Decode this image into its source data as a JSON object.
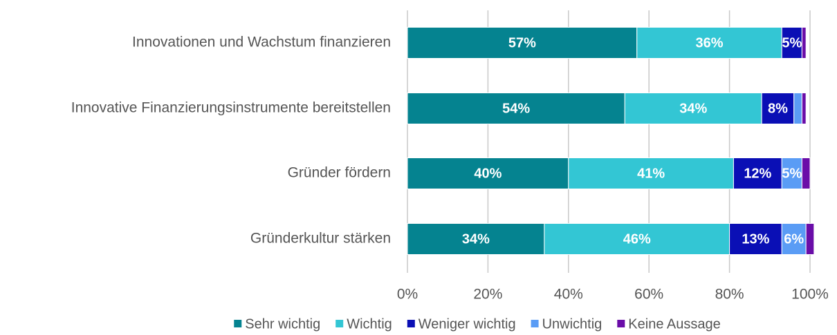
{
  "chart_data": {
    "type": "stacked-barh",
    "categories": [
      "Innovationen und Wachstum finanzieren",
      "Innovative Finanzierungsinstrumente bereitstellen",
      "Gründer fördern",
      "Gründerkultur stärken"
    ],
    "series": [
      {
        "name": "Sehr wichtig",
        "color": "#058390",
        "values": [
          57,
          54,
          40,
          34
        ],
        "value_labels": [
          "57%",
          "54%",
          "40%",
          "34%"
        ]
      },
      {
        "name": "Wichtig",
        "color": "#33c6d4",
        "values": [
          36,
          34,
          41,
          46
        ],
        "value_labels": [
          "36%",
          "34%",
          "41%",
          "46%"
        ]
      },
      {
        "name": "Weniger wichtig",
        "color": "#0a0fb5",
        "values": [
          5,
          8,
          12,
          13
        ],
        "value_labels": [
          "5%",
          "8%",
          "12%",
          "13%"
        ]
      },
      {
        "name": "Unwichtig",
        "color": "#5a9cf5",
        "values": [
          0,
          2,
          5,
          6
        ],
        "value_labels": [
          null,
          null,
          "5%",
          "6%"
        ]
      },
      {
        "name": "Keine Aussage",
        "color": "#6a0da8",
        "values": [
          1,
          1,
          2,
          2
        ],
        "value_labels": [
          null,
          null,
          null,
          null
        ]
      }
    ],
    "xlim": [
      0,
      100
    ],
    "xticks": [
      {
        "value": 0,
        "label": "0%"
      },
      {
        "value": 20,
        "label": "20%"
      },
      {
        "value": 40,
        "label": "40%"
      },
      {
        "value": 60,
        "label": "60%"
      },
      {
        "value": 80,
        "label": "80%"
      },
      {
        "value": 100,
        "label": "100%"
      }
    ],
    "grid": true,
    "legend": "bottom"
  }
}
